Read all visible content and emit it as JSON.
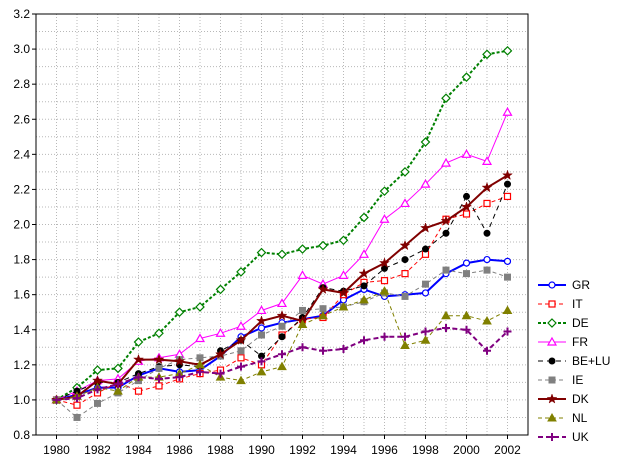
{
  "chart_data": {
    "type": "line",
    "title": "",
    "xlabel": "",
    "ylabel": "",
    "x": [
      1980,
      1981,
      1982,
      1983,
      1984,
      1985,
      1986,
      1987,
      1988,
      1989,
      1990,
      1991,
      1992,
      1993,
      1994,
      1995,
      1996,
      1997,
      1998,
      1999,
      2000,
      2001,
      2002
    ],
    "xlim": [
      1979,
      2003
    ],
    "ylim": [
      0.8,
      3.2
    ],
    "x_ticks": [
      "1980",
      "1982",
      "1984",
      "1986",
      "1988",
      "1990",
      "1992",
      "1994",
      "1996",
      "1998",
      "2000",
      "2002"
    ],
    "y_ticks": [
      "0.8",
      "1.0",
      "1.2",
      "1.4",
      "1.6",
      "1.8",
      "2.0",
      "2.2",
      "2.4",
      "2.6",
      "2.8",
      "3.0",
      "3.2"
    ],
    "grid": true,
    "legend_position": "right",
    "series": [
      {
        "name": "GR",
        "color": "#0000ff",
        "dash": "",
        "marker": "circle-open",
        "width": 2,
        "values": [
          1.0,
          1.03,
          1.07,
          1.07,
          1.14,
          1.18,
          1.16,
          1.17,
          1.25,
          1.36,
          1.41,
          1.44,
          1.46,
          1.48,
          1.57,
          1.63,
          1.59,
          1.6,
          1.61,
          1.72,
          1.78,
          1.8,
          1.79
        ]
      },
      {
        "name": "IT",
        "color": "#ff0000",
        "dash": "4,3",
        "marker": "square-open",
        "width": 1,
        "values": [
          1.0,
          0.97,
          1.04,
          1.1,
          1.05,
          1.08,
          1.12,
          1.15,
          1.17,
          1.24,
          1.2,
          1.37,
          1.46,
          1.47,
          1.6,
          1.67,
          1.68,
          1.72,
          1.83,
          2.03,
          2.06,
          2.12,
          2.16
        ]
      },
      {
        "name": "DE",
        "color": "#008000",
        "dash": "3,2",
        "marker": "diamond-open",
        "width": 2,
        "values": [
          1.0,
          1.07,
          1.17,
          1.18,
          1.33,
          1.38,
          1.5,
          1.53,
          1.63,
          1.73,
          1.84,
          1.83,
          1.86,
          1.88,
          1.91,
          2.04,
          2.19,
          2.3,
          2.47,
          2.72,
          2.84,
          2.97,
          2.99
        ]
      },
      {
        "name": "FR",
        "color": "#ff00ff",
        "dash": "",
        "marker": "triangle-open",
        "width": 1,
        "values": [
          1.0,
          1.05,
          1.11,
          1.12,
          1.22,
          1.24,
          1.26,
          1.35,
          1.38,
          1.42,
          1.51,
          1.55,
          1.71,
          1.66,
          1.71,
          1.83,
          2.03,
          2.12,
          2.23,
          2.35,
          2.4,
          2.36,
          2.64
        ]
      },
      {
        "name": "BE+LU",
        "color": "#000000",
        "dash": "5,4",
        "marker": "circle-filled",
        "width": 1,
        "values": [
          1.0,
          1.05,
          1.1,
          1.1,
          1.15,
          1.19,
          1.2,
          1.19,
          1.28,
          1.34,
          1.25,
          1.36,
          1.47,
          1.64,
          1.62,
          1.65,
          1.75,
          1.8,
          1.86,
          1.95,
          2.16,
          1.95,
          2.23
        ]
      },
      {
        "name": "IE",
        "color": "#808080",
        "dash": "4,3",
        "marker": "square-filled",
        "width": 1,
        "values": [
          1.0,
          0.9,
          0.98,
          1.04,
          1.11,
          1.18,
          1.23,
          1.24,
          1.25,
          1.28,
          1.37,
          1.42,
          1.51,
          1.52,
          1.53,
          1.56,
          1.61,
          1.59,
          1.66,
          1.74,
          1.72,
          1.74,
          1.7
        ]
      },
      {
        "name": "DK",
        "color": "#800000",
        "dash": "",
        "marker": "star-filled",
        "width": 2,
        "values": [
          1.0,
          1.02,
          1.11,
          1.09,
          1.23,
          1.23,
          1.22,
          1.2,
          1.26,
          1.34,
          1.45,
          1.48,
          1.45,
          1.63,
          1.61,
          1.72,
          1.78,
          1.88,
          1.98,
          2.02,
          2.1,
          2.21,
          2.28
        ]
      },
      {
        "name": "NL",
        "color": "#808000",
        "dash": "4,3",
        "marker": "triangle-filled",
        "width": 1,
        "values": [
          1.0,
          1.02,
          1.07,
          1.05,
          1.13,
          1.13,
          1.15,
          1.2,
          1.13,
          1.11,
          1.16,
          1.19,
          1.43,
          1.48,
          1.53,
          1.57,
          1.62,
          1.31,
          1.34,
          1.48,
          1.48,
          1.45,
          1.51
        ]
      },
      {
        "name": "UK",
        "color": "#800080",
        "dash": "5,3",
        "marker": "plus",
        "width": 2,
        "values": [
          1.0,
          1.01,
          1.06,
          1.09,
          1.13,
          1.12,
          1.13,
          1.16,
          1.15,
          1.19,
          1.22,
          1.26,
          1.3,
          1.28,
          1.29,
          1.34,
          1.36,
          1.36,
          1.39,
          1.41,
          1.4,
          1.28,
          1.39
        ]
      }
    ]
  }
}
